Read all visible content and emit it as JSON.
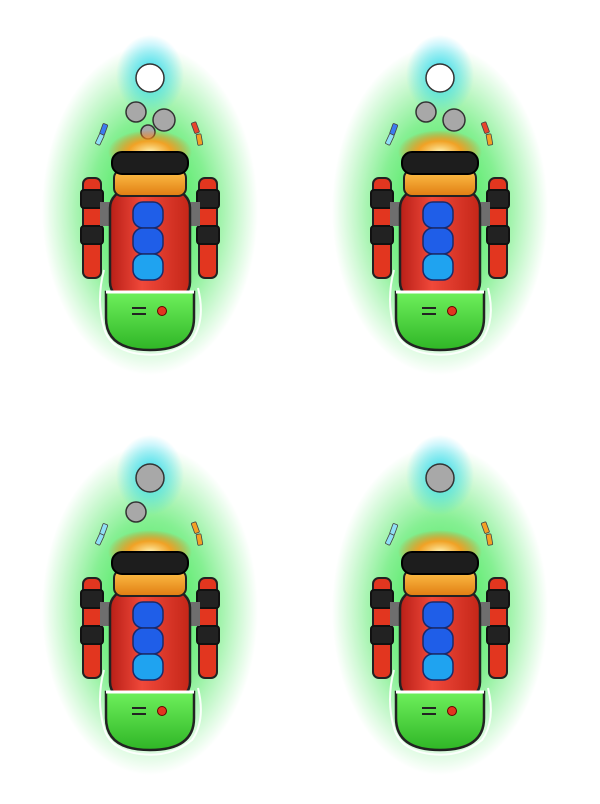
{
  "sheet": {
    "kind": "sprite-sheet",
    "frame_count": 4,
    "layout": "2x2",
    "background": "#ffffff"
  },
  "colors": {
    "glow_green": "#22e33a",
    "glow_cyan": "#29d9f2",
    "body_red": "#e8372b",
    "body_green": "#48d93a",
    "cap_black": "#1d1d1d",
    "band_orange": "#f4a023",
    "window_blue": "#1f5ee8",
    "window_cyan": "#1fa3f0",
    "thruster_black": "#222222",
    "thruster_red": "#e2361f",
    "flame_orange": "#ff9a1c",
    "smoke_white": "#ffffff",
    "smoke_gray": "#a8a8a8",
    "spark_blue": "#3c7bf0",
    "spark_cyan": "#8fdff5",
    "spark_red": "#e8452c",
    "spark_orange": "#f4a023"
  },
  "frames": [
    {
      "name": "frame-1",
      "smoke": [
        "white",
        "gray",
        "gray",
        "gray"
      ],
      "sparks": [
        "blue",
        "cyan",
        "red",
        "orange"
      ],
      "windows": [
        "blue",
        "blue",
        "cyan"
      ],
      "side_pods": true
    },
    {
      "name": "frame-2",
      "smoke": [
        "white",
        "gray",
        "gray"
      ],
      "sparks": [
        "blue",
        "cyan",
        "red",
        "orange"
      ],
      "windows": [
        "blue",
        "blue",
        "cyan"
      ],
      "side_pods": true
    },
    {
      "name": "frame-3",
      "smoke": [
        "gray",
        "gray"
      ],
      "sparks": [
        "cyan",
        "cyan",
        "orange",
        "orange"
      ],
      "windows": [
        "blue",
        "blue",
        "cyan"
      ],
      "side_pods": true
    },
    {
      "name": "frame-4",
      "smoke": [
        "gray"
      ],
      "sparks": [
        "cyan",
        "cyan",
        "orange",
        "orange"
      ],
      "windows": [
        "blue",
        "blue",
        "cyan"
      ],
      "side_pods": true
    }
  ]
}
